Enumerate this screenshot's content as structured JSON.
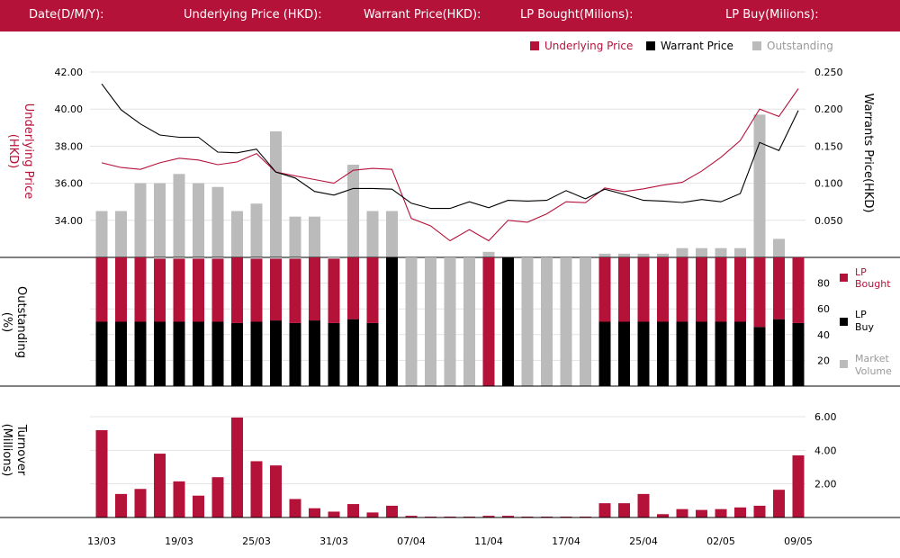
{
  "header": {
    "fields": [
      {
        "label": "Date(D/M/Y):"
      },
      {
        "label": "Underlying Price (HKD):"
      },
      {
        "label": "Warrant  Price(HKD):"
      },
      {
        "label": "LP Bought(Milions):"
      },
      {
        "label": "LP Buy(Milions):"
      }
    ]
  },
  "legend_top": [
    {
      "label": "Underlying Price",
      "color": "#b5123a"
    },
    {
      "label": "Warrant  Price",
      "color": "#000000"
    },
    {
      "label": "Outstanding",
      "color": "#bbbbbb"
    }
  ],
  "legend_mid": [
    {
      "line1": "LP",
      "line2": "Bought",
      "color": "#b5123a"
    },
    {
      "line1": "LP",
      "line2": "Buy",
      "color": "#000000"
    },
    {
      "line1": "Market",
      "line2": "Volume",
      "color": "#bbbbbb"
    }
  ],
  "colors": {
    "accent": "#b5123a",
    "black": "#000000",
    "gray": "#bbbbbb",
    "grid": "#e3e3e3"
  },
  "chart_data": {
    "type": "combo",
    "x_labels": [
      "13/03",
      "19/03",
      "25/03",
      "31/03",
      "07/04",
      "11/04",
      "17/04",
      "25/04",
      "02/05",
      "09/05"
    ],
    "x_label_index": [
      0,
      4,
      8,
      12,
      16,
      20,
      24,
      28,
      32,
      36
    ],
    "price_panel": {
      "left_axis_title": [
        "Underlying Price",
        "(HKD)"
      ],
      "right_axis_title": "Warrants  Price(HKD)",
      "left_ticks": [
        "42.00",
        "40.00",
        "38.00",
        "36.00",
        "34.00"
      ],
      "right_ticks": [
        "0.250",
        "0.200",
        "0.150",
        "0.100",
        "0.050"
      ],
      "left_range": [
        32.0,
        42.0
      ],
      "right_range": [
        0.0,
        0.25
      ],
      "underlying_price": [
        37.1,
        36.85,
        36.75,
        37.1,
        37.35,
        37.25,
        37.0,
        37.15,
        37.6,
        36.6,
        36.4,
        36.2,
        36.0,
        36.7,
        36.8,
        36.75,
        34.1,
        33.7,
        32.9,
        33.5,
        32.9,
        34.0,
        33.9,
        34.35,
        35.0,
        34.95,
        35.75,
        35.55,
        35.7,
        35.9,
        36.05,
        36.65,
        37.4,
        38.3,
        40.0,
        39.6,
        41.1
      ],
      "warrant_price": [
        0.234,
        0.199,
        0.18,
        0.165,
        0.162,
        0.162,
        0.142,
        0.141,
        0.146,
        0.115,
        0.107,
        0.089,
        0.084,
        0.093,
        0.093,
        0.092,
        0.073,
        0.066,
        0.066,
        0.075,
        0.067,
        0.077,
        0.076,
        0.077,
        0.09,
        0.079,
        0.092,
        0.085,
        0.077,
        0.076,
        0.074,
        0.078,
        0.075,
        0.086,
        0.155,
        0.144,
        0.198
      ],
      "outstanding_pct": [
        25,
        25,
        40,
        40,
        45,
        40,
        38,
        25,
        29,
        68,
        22,
        22,
        0,
        50,
        25,
        25,
        0,
        0,
        0,
        0,
        3,
        0,
        0,
        0,
        0,
        0,
        2,
        2,
        2,
        2,
        5,
        5,
        5,
        5,
        77,
        10,
        0
      ]
    },
    "outstanding_panel": {
      "axis_title": [
        "Outstanding",
        "(%)"
      ],
      "ticks": [
        "80",
        "60",
        "40",
        "20"
      ],
      "range": [
        0,
        100
      ],
      "lp_buy_pct": [
        50,
        50,
        50,
        50,
        50,
        50,
        50,
        49,
        50,
        51,
        49,
        51,
        49,
        52,
        49,
        100,
        0,
        0,
        0,
        0,
        0,
        100,
        0,
        0,
        0,
        0,
        50,
        50,
        50,
        50,
        50,
        50,
        50,
        50,
        46,
        52,
        49
      ],
      "lp_bought_pct": [
        50,
        50,
        50,
        49,
        49,
        49,
        49,
        51,
        49,
        48,
        50,
        49,
        50,
        48,
        51,
        0,
        0,
        0,
        0,
        0,
        100,
        0,
        0,
        0,
        0,
        0,
        50,
        50,
        50,
        50,
        50,
        50,
        50,
        50,
        54,
        48,
        51
      ],
      "market_volume_pct": [
        0,
        0,
        0,
        1,
        1,
        1,
        1,
        0,
        1,
        1,
        1,
        0,
        1,
        0,
        0,
        0,
        100,
        100,
        100,
        100,
        0,
        0,
        100,
        100,
        100,
        100,
        0,
        0,
        0,
        0,
        0,
        0,
        0,
        0,
        0,
        0,
        0
      ]
    },
    "turnover_panel": {
      "axis_title": [
        "Turnover",
        "(Millions)"
      ],
      "ticks": [
        "6.00",
        "4.00",
        "2.00"
      ],
      "range": [
        0,
        6.0
      ],
      "values": [
        5.2,
        1.4,
        1.7,
        3.8,
        2.15,
        1.3,
        2.4,
        5.95,
        3.35,
        3.1,
        1.1,
        0.55,
        0.35,
        0.8,
        0.3,
        0.7,
        0.1,
        0.02,
        0.02,
        0.02,
        0.1,
        0.1,
        0.02,
        0.02,
        0.02,
        0.02,
        0.85,
        0.85,
        1.4,
        0.2,
        0.5,
        0.45,
        0.5,
        0.6,
        0.7,
        1.65,
        3.7
      ]
    }
  }
}
